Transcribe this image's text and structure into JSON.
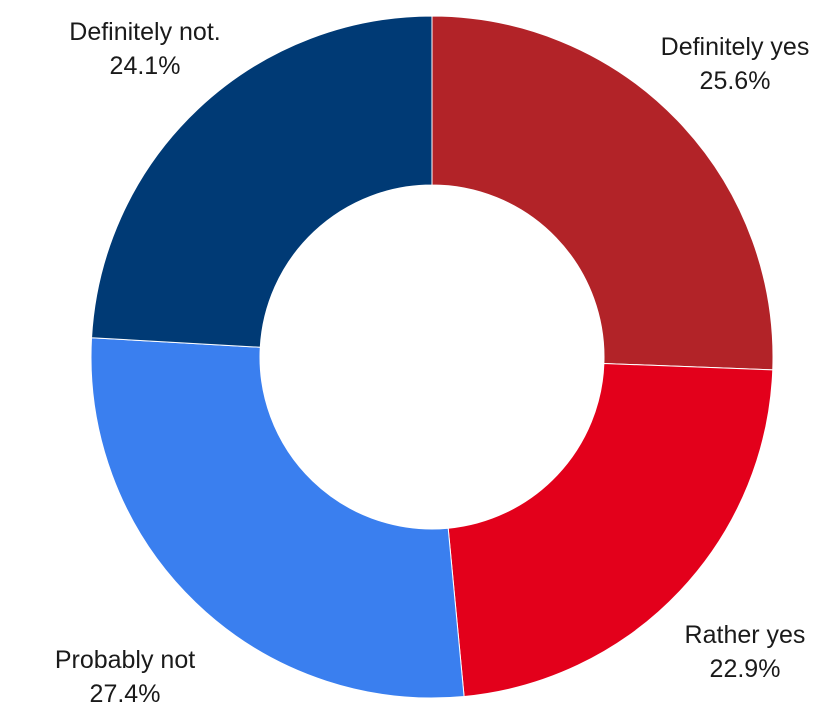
{
  "chart_data": {
    "type": "pie",
    "variant": "donut",
    "start_angle_deg": 0,
    "direction": "clockwise",
    "slices": [
      {
        "label": "Definitely yes",
        "value": 25.6,
        "value_label": "25.6%",
        "color": "#b22328"
      },
      {
        "label": "Rather yes",
        "value": 22.9,
        "value_label": "22.9%",
        "color": "#e3001b"
      },
      {
        "label": "Probably not",
        "value": 27.4,
        "value_label": "27.4%",
        "color": "#3a7fef"
      },
      {
        "label": "Definitely not.",
        "value": 24.1,
        "value_label": "24.1%",
        "color": "#003a75"
      }
    ]
  }
}
